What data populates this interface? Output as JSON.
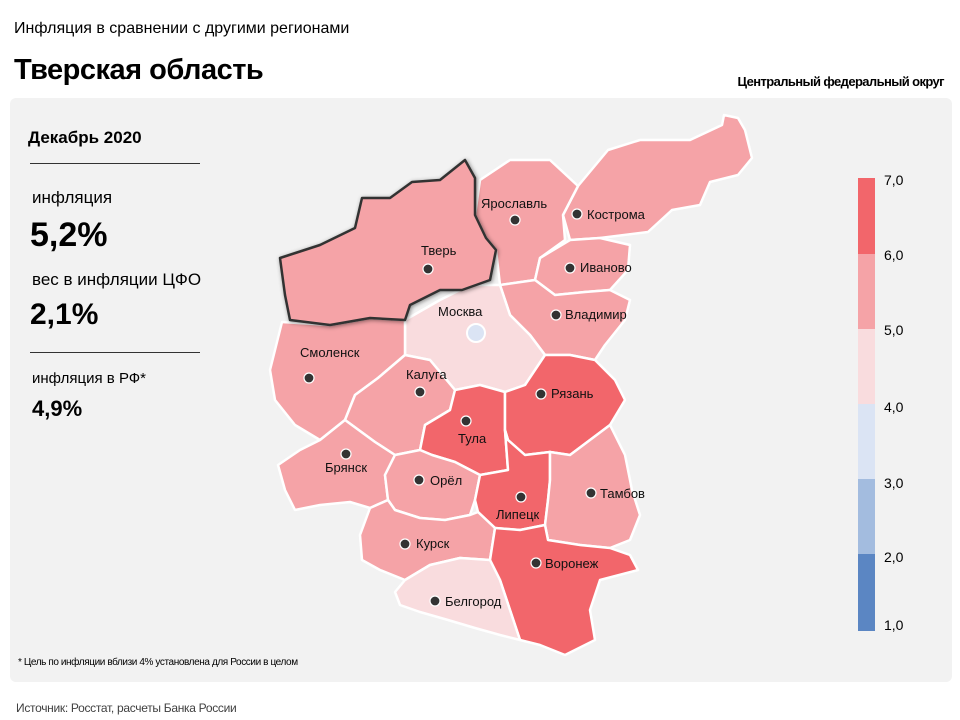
{
  "header": {
    "subtitle": "Инфляция в сравнении с другими регионами",
    "region": "Тверская область",
    "district": "Центральный федеральный округ"
  },
  "stats": {
    "period": "Декабрь 2020",
    "inflation_label": "инфляция",
    "inflation_value": "5,2%",
    "weight_label": "вес в инфляции ЦФО",
    "weight_value": "2,1%",
    "russia_label": "инфляция  в РФ*",
    "russia_value": "4,9%"
  },
  "legend": {
    "ticks": [
      "7,0",
      "6,0",
      "5,0",
      "4,0",
      "3,0",
      "2,0",
      "1,0"
    ],
    "bands": [
      {
        "from": 6.0,
        "to": 7.0,
        "color": "#f2666b"
      },
      {
        "from": 5.0,
        "to": 6.0,
        "color": "#f5a3a7"
      },
      {
        "from": 4.0,
        "to": 5.0,
        "color": "#f9dcde"
      },
      {
        "from": 3.0,
        "to": 4.0,
        "color": "#dbe4f4"
      },
      {
        "from": 2.0,
        "to": 3.0,
        "color": "#a3bcdf"
      },
      {
        "from": 1.0,
        "to": 2.0,
        "color": "#5b86c3"
      }
    ]
  },
  "map": {
    "highlighted_region": "Тверь",
    "cities": {
      "yaroslavl": "Ярославль",
      "kostroma": "Кострома",
      "tver": "Тверь",
      "ivanovo": "Иваново",
      "moskva": "Москва",
      "vladimir": "Владимир",
      "smolensk": "Смоленск",
      "kaluga": "Калуга",
      "ryazan": "Рязань",
      "tula": "Тула",
      "bryansk": "Брянск",
      "orel": "Орёл",
      "tambov": "Тамбов",
      "lipetsk": "Липецк",
      "kursk": "Курск",
      "voronezh": "Воронеж",
      "belgorod": "Белгород"
    }
  },
  "footnote": "* Цель по инфляции вблизи 4% установлена для России в целом",
  "source": "Источник: Росстат, расчеты Банка России"
}
